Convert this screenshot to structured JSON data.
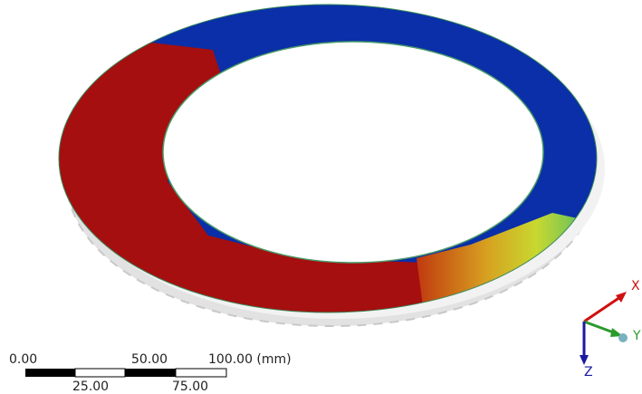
{
  "scale_bar": {
    "top_labels": [
      "0.00",
      "50.00",
      "100.00 (mm)"
    ],
    "bottom_labels": [
      "25.00",
      "75.00"
    ]
  },
  "triad": {
    "x": "X",
    "y": "Y",
    "z": "Z"
  }
}
